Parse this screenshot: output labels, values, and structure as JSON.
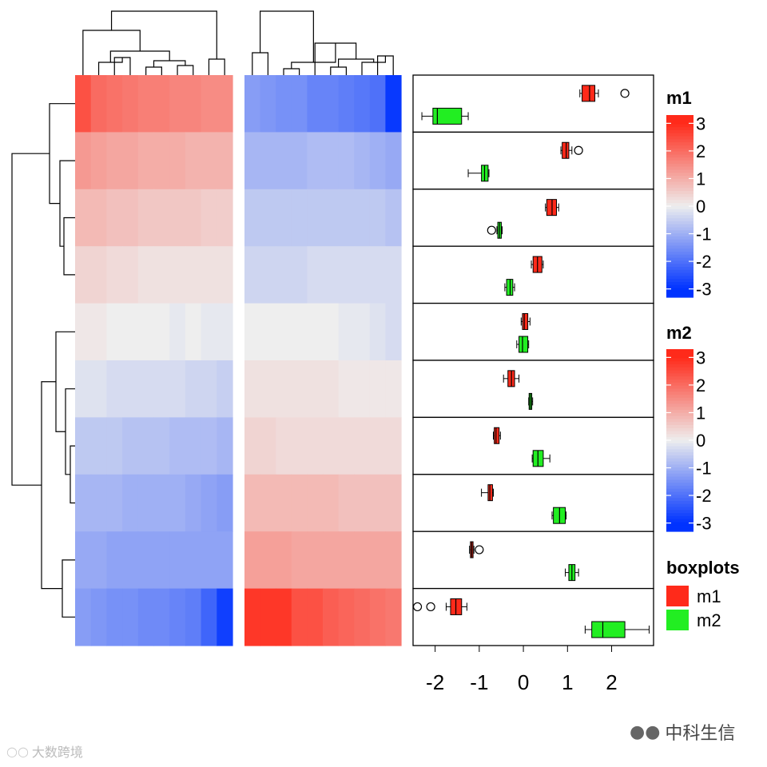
{
  "chart_data": {
    "type": "heatmap",
    "rows": 10,
    "heatmap_m1": [
      [
        2.4,
        2.0,
        1.9,
        1.8,
        1.7,
        1.7,
        1.6,
        1.6,
        1.5,
        1.5
      ],
      [
        1.3,
        1.2,
        1.1,
        1.1,
        1.0,
        1.0,
        1.0,
        0.9,
        0.9,
        0.9
      ],
      [
        0.8,
        0.8,
        0.7,
        0.7,
        0.6,
        0.6,
        0.6,
        0.6,
        0.5,
        0.5
      ],
      [
        0.4,
        0.4,
        0.3,
        0.3,
        0.2,
        0.2,
        0.2,
        0.2,
        0.2,
        0.2
      ],
      [
        0.1,
        0.1,
        0.0,
        0.0,
        0.0,
        0.0,
        -0.1,
        0.0,
        -0.1,
        -0.1
      ],
      [
        -0.2,
        -0.2,
        -0.3,
        -0.3,
        -0.3,
        -0.3,
        -0.3,
        -0.4,
        -0.4,
        -0.5
      ],
      [
        -0.6,
        -0.6,
        -0.6,
        -0.7,
        -0.7,
        -0.7,
        -0.8,
        -0.8,
        -0.8,
        -0.9
      ],
      [
        -0.9,
        -0.9,
        -0.9,
        -1.0,
        -1.0,
        -1.0,
        -1.0,
        -1.1,
        -1.2,
        -1.3
      ],
      [
        -1.1,
        -1.1,
        -1.2,
        -1.2,
        -1.2,
        -1.2,
        -1.2,
        -1.2,
        -1.2,
        -1.2
      ],
      [
        -1.3,
        -1.4,
        -1.5,
        -1.5,
        -1.6,
        -1.6,
        -1.7,
        -1.8,
        -2.2,
        -2.8
      ]
    ],
    "heatmap_m2": [
      [
        -1.3,
        -1.4,
        -1.5,
        -1.5,
        -1.7,
        -1.7,
        -1.8,
        -1.9,
        -2.0,
        -2.9
      ],
      [
        -0.9,
        -0.9,
        -0.9,
        -0.9,
        -0.8,
        -0.8,
        -0.8,
        -0.9,
        -1.0,
        -1.1
      ],
      [
        -0.6,
        -0.6,
        -0.6,
        -0.6,
        -0.6,
        -0.6,
        -0.6,
        -0.6,
        -0.6,
        -0.7
      ],
      [
        -0.4,
        -0.4,
        -0.4,
        -0.4,
        -0.3,
        -0.3,
        -0.3,
        -0.3,
        -0.3,
        -0.3
      ],
      [
        0.0,
        0.0,
        0.0,
        0.0,
        0.0,
        0.0,
        -0.1,
        -0.1,
        -0.2,
        -0.3
      ],
      [
        0.2,
        0.2,
        0.2,
        0.2,
        0.2,
        0.2,
        0.1,
        0.1,
        0.1,
        0.1
      ],
      [
        0.4,
        0.4,
        0.3,
        0.3,
        0.3,
        0.3,
        0.3,
        0.3,
        0.3,
        0.3
      ],
      [
        0.8,
        0.8,
        0.8,
        0.8,
        0.8,
        0.8,
        0.7,
        0.7,
        0.7,
        0.7
      ],
      [
        1.2,
        1.2,
        1.2,
        1.1,
        1.1,
        1.1,
        1.1,
        1.1,
        1.1,
        1.1
      ],
      [
        2.8,
        2.8,
        2.8,
        2.4,
        2.4,
        2.2,
        2.1,
        2.0,
        1.9,
        1.8
      ]
    ],
    "boxplots": [
      {
        "m1": {
          "min": 1.28,
          "q1": 1.33,
          "median": 1.5,
          "q3": 1.62,
          "max": 1.7,
          "outliers": [
            2.3
          ]
        },
        "m2": {
          "min": -2.3,
          "q1": -2.05,
          "median": -1.95,
          "q3": -1.4,
          "max": -1.25,
          "outliers": []
        }
      },
      {
        "m1": {
          "min": 0.85,
          "q1": 0.88,
          "median": 0.97,
          "q3": 1.03,
          "max": 1.1,
          "outliers": [
            1.25
          ]
        },
        "m2": {
          "min": -1.25,
          "q1": -0.95,
          "median": -0.88,
          "q3": -0.8,
          "max": -0.78,
          "outliers": []
        }
      },
      {
        "m1": {
          "min": 0.5,
          "q1": 0.53,
          "median": 0.65,
          "q3": 0.75,
          "max": 0.8,
          "outliers": []
        },
        "m2": {
          "min": -0.6,
          "q1": -0.58,
          "median": -0.54,
          "q3": -0.5,
          "max": -0.48,
          "outliers": [
            -0.72
          ]
        }
      },
      {
        "m1": {
          "min": 0.18,
          "q1": 0.22,
          "median": 0.32,
          "q3": 0.42,
          "max": 0.45,
          "outliers": []
        },
        "m2": {
          "min": -0.42,
          "q1": -0.38,
          "median": -0.3,
          "q3": -0.24,
          "max": -0.2,
          "outliers": []
        }
      },
      {
        "m1": {
          "min": -0.05,
          "q1": -0.02,
          "median": 0.02,
          "q3": 0.1,
          "max": 0.15,
          "outliers": []
        },
        "m2": {
          "min": -0.15,
          "q1": -0.1,
          "median": -0.02,
          "q3": 0.1,
          "max": 0.12,
          "outliers": []
        }
      },
      {
        "m1": {
          "min": -0.45,
          "q1": -0.35,
          "median": -0.27,
          "q3": -0.2,
          "max": -0.1,
          "outliers": []
        },
        "m2": {
          "min": 0.12,
          "q1": 0.13,
          "median": 0.16,
          "q3": 0.19,
          "max": 0.21,
          "outliers": []
        }
      },
      {
        "m1": {
          "min": -0.68,
          "q1": -0.66,
          "median": -0.62,
          "q3": -0.55,
          "max": -0.52,
          "outliers": []
        },
        "m2": {
          "min": 0.2,
          "q1": 0.22,
          "median": 0.33,
          "q3": 0.45,
          "max": 0.6,
          "outliers": []
        }
      },
      {
        "m1": {
          "min": -0.95,
          "q1": -0.8,
          "median": -0.76,
          "q3": -0.7,
          "max": -0.68,
          "outliers": []
        },
        "m2": {
          "min": 0.65,
          "q1": 0.68,
          "median": 0.82,
          "q3": 0.95,
          "max": 0.97,
          "outliers": []
        }
      },
      {
        "m1": {
          "min": -1.22,
          "q1": -1.2,
          "median": -1.17,
          "q3": -1.14,
          "max": -1.12,
          "outliers": [
            -1.0
          ]
        },
        "m2": {
          "min": 0.95,
          "q1": 1.03,
          "median": 1.1,
          "q3": 1.17,
          "max": 1.25,
          "outliers": []
        }
      },
      {
        "m1": {
          "min": -1.75,
          "q1": -1.65,
          "median": -1.53,
          "q3": -1.4,
          "max": -1.28,
          "outliers": [
            -2.4,
            -2.1
          ]
        },
        "m2": {
          "min": 1.4,
          "q1": 1.55,
          "median": 1.8,
          "q3": 2.3,
          "max": 2.85,
          "outliers": []
        }
      }
    ],
    "box_axis": {
      "ticks": [
        -2,
        -1,
        0,
        1,
        2
      ],
      "tick_labels": [
        "-2",
        "-1",
        "0",
        "1",
        "2"
      ],
      "xlim": [
        -2.5,
        2.95
      ]
    },
    "legends": [
      {
        "title": "m1",
        "ticks": [
          3,
          2,
          1,
          0,
          -1,
          -2,
          -3
        ],
        "tick_labels": [
          "3",
          "2",
          "1",
          "0",
          "-1",
          "-2",
          "-3"
        ]
      },
      {
        "title": "m2",
        "ticks": [
          3,
          2,
          1,
          0,
          -1,
          -2,
          -3
        ],
        "tick_labels": [
          "3",
          "2",
          "1",
          "0",
          "-1",
          "-2",
          "-3"
        ]
      },
      {
        "title": "boxplots",
        "items": [
          {
            "label": "m1",
            "color": "#ff2a1a"
          },
          {
            "label": "m2",
            "color": "#22ee22"
          }
        ]
      }
    ],
    "colors": {
      "high": "#ff2a1a",
      "mid": "#eeeeee",
      "low": "#0033ff",
      "m1": "#ff2a1a",
      "m2": "#22ee22"
    }
  },
  "watermarks": {
    "right": "中科生信",
    "left": "大数跨境"
  }
}
